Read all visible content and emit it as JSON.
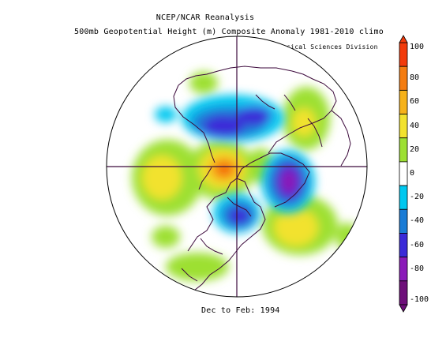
{
  "header": {
    "title": "NCEP/NCAR Reanalysis",
    "subtitle": "500mb Geopotential Height (m) Composite Anomaly 1981-2010 climo",
    "credit": "NOAA/ESRL Physical Sciences Division"
  },
  "footer": {
    "period": "Dec to Feb: 1994"
  },
  "colorbar": {
    "labels": [
      "100",
      "80",
      "60",
      "40",
      "20",
      "0",
      "-20",
      "-40",
      "-60",
      "-80",
      "-100"
    ],
    "colors": [
      "#f23a0a",
      "#f47c10",
      "#f6b21a",
      "#f2e22e",
      "#9de033",
      "#ffffff",
      "#00c8f0",
      "#1a7cd6",
      "#3a2ad8",
      "#8a1ab8",
      "#6e0f7a"
    ]
  },
  "map": {
    "projection": "north-polar-stereographic",
    "fill_colors": {
      "pos20": "#9de033",
      "pos40": "#f2e22e",
      "pos60": "#f6b21a",
      "pos80": "#f47c10",
      "pos100": "#f23a0a",
      "neg20": "#00c8f0",
      "neg40": "#1a7cd6",
      "neg60": "#3a2ad8",
      "neg80": "#8a1ab8",
      "neg100": "#6e0f7a",
      "coast": "#3c0a3c"
    }
  }
}
